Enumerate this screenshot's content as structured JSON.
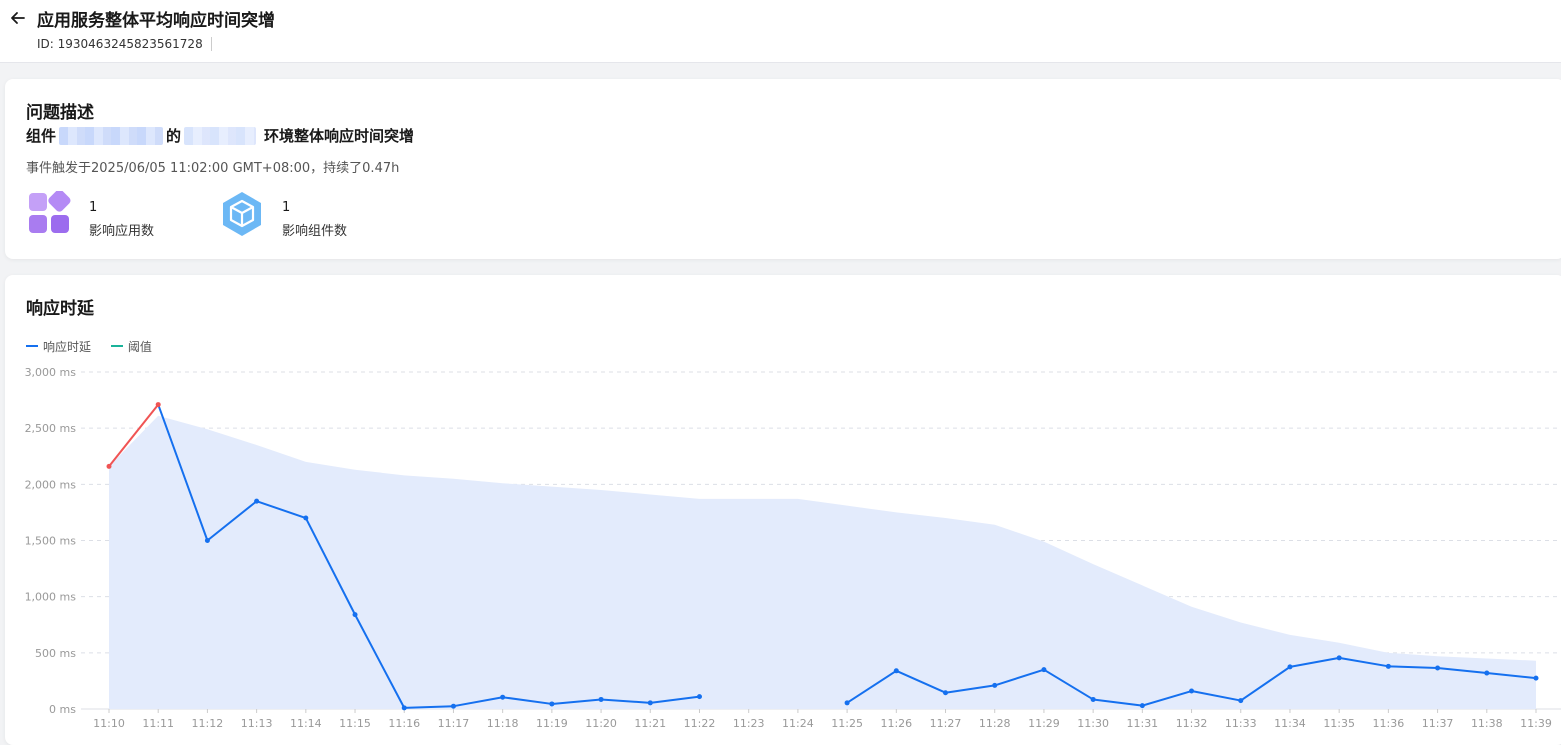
{
  "header": {
    "title": "应用服务整体平均响应时间突增",
    "id_text": "ID: 1930463245823561728"
  },
  "description": {
    "section_title": "问题描述",
    "line_prefix": "组件",
    "line_middle": "的",
    "line_suffix": "环境整体响应时间突增",
    "trigger_text": "事件触发于2025/06/05 11:02:00 GMT+08:00，持续了0.47h",
    "metrics": [
      {
        "value": "1",
        "label": "影响应用数",
        "icon": "apps-grid-icon"
      },
      {
        "value": "1",
        "label": "影响组件数",
        "icon": "component-cube-icon"
      }
    ]
  },
  "chart_section": {
    "title": "响应时延"
  },
  "colors": {
    "line": "#1570ef",
    "alert": "#f05454",
    "threshold": "#1ab39a",
    "band": "#e3ebfc",
    "grid": "#dcdfe6"
  },
  "chart_data": {
    "type": "line",
    "title": "响应时延",
    "legend": [
      "响应时延",
      "阈值"
    ],
    "legend_position": "top-left",
    "x": [
      "11:10",
      "11:11",
      "11:12",
      "11:13",
      "11:14",
      "11:15",
      "11:16",
      "11:17",
      "11:18",
      "11:19",
      "11:20",
      "11:21",
      "11:22",
      "11:23",
      "11:24",
      "11:25",
      "11:26",
      "11:27",
      "11:28",
      "11:29",
      "11:30",
      "11:31",
      "11:32",
      "11:33",
      "11:34",
      "11:35",
      "11:36",
      "11:37",
      "11:38",
      "11:39"
    ],
    "y_ticks": [
      "0 ms",
      "500 ms",
      "1,000 ms",
      "1,500 ms",
      "2,000 ms",
      "2,500 ms",
      "3,000 ms"
    ],
    "ylim": [
      0,
      3000
    ],
    "grid": true,
    "series": [
      {
        "name": "响应时延",
        "values": [
          2160,
          2710,
          1500,
          1850,
          1700,
          840,
          10,
          25,
          105,
          45,
          85,
          55,
          110,
          null,
          null,
          55,
          340,
          145,
          210,
          350,
          85,
          30,
          160,
          75,
          375,
          455,
          380,
          365,
          320,
          275
        ]
      },
      {
        "name": "阈值",
        "values": [
          2160,
          2610,
          2490,
          2350,
          2200,
          2130,
          2080,
          2050,
          2010,
          1980,
          1950,
          1910,
          1870,
          1870,
          1870,
          1810,
          1750,
          1700,
          1640,
          1490,
          1290,
          1100,
          910,
          770,
          660,
          590,
          500,
          470,
          450,
          430
        ]
      }
    ],
    "alert_segments": [
      [
        0,
        1
      ]
    ]
  }
}
